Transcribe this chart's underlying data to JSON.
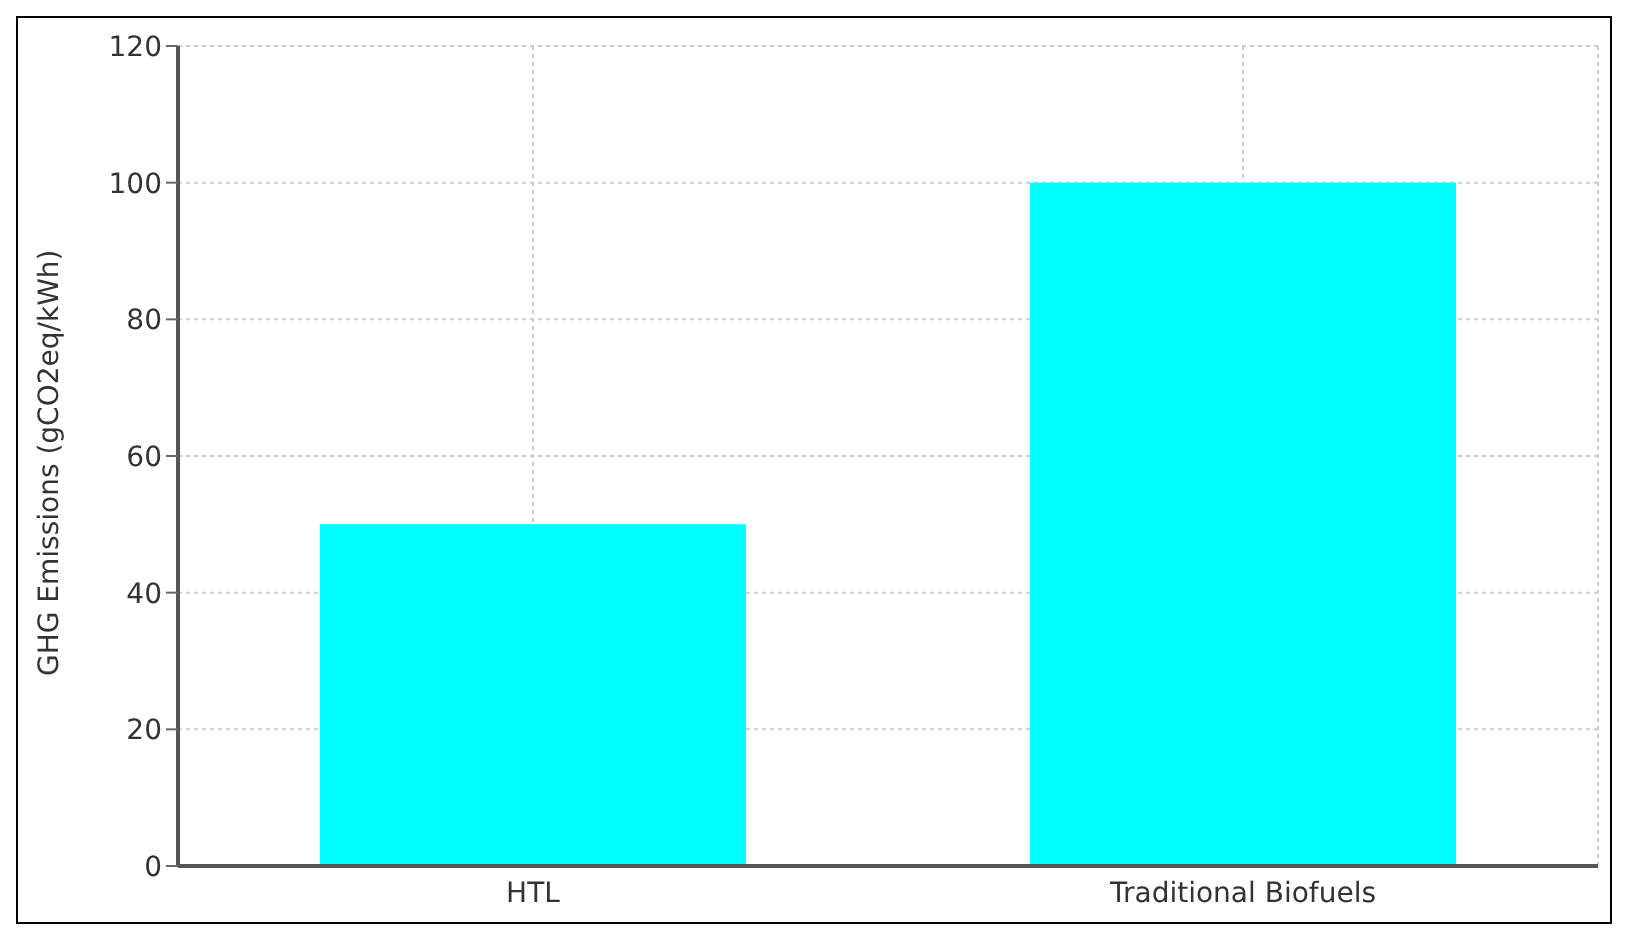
{
  "chart_data": {
    "type": "bar",
    "ylabel": "GHG Emissions (gCO2eq/kWh)",
    "categories": [
      "HTL",
      "Traditional Biofuels"
    ],
    "values": [
      50,
      100
    ],
    "color": "#00ffff",
    "ylim": [
      0,
      120
    ],
    "yticks": [
      0,
      20,
      40,
      60,
      80,
      100,
      120
    ],
    "grid": true
  }
}
